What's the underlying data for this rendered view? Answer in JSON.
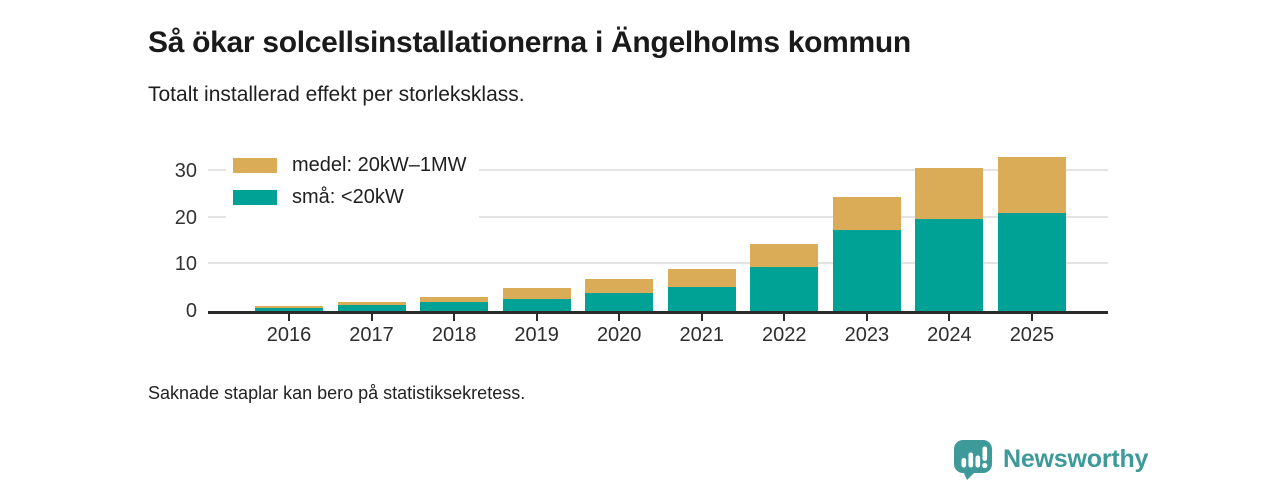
{
  "branding": {
    "name": "Newsworthy",
    "icon": "bar-chart-speech-bubble-icon",
    "color": "#3d9a98"
  },
  "chart_data": {
    "type": "bar",
    "stacked": true,
    "title": "Så ökar solcellsinstallationerna i Ängelholms kommun",
    "subtitle": "Totalt installerad effekt per storleksklass.",
    "footnote": "Saknade staplar kan bero på statistiksekretess.",
    "categories": [
      "2016",
      "2017",
      "2018",
      "2019",
      "2020",
      "2021",
      "2022",
      "2023",
      "2024",
      "2025"
    ],
    "series": [
      {
        "name": "medel: 20kW–1MW",
        "color": "#dbac57",
        "values": [
          0.3,
          0.6,
          1.0,
          2.5,
          3.0,
          3.9,
          5.0,
          7.1,
          11.0,
          12.0
        ]
      },
      {
        "name": "små: <20kW",
        "color": "#00a296",
        "values": [
          0.7,
          1.3,
          1.9,
          2.5,
          3.9,
          5.2,
          9.4,
          17.3,
          19.6,
          21.0
        ]
      }
    ],
    "stack_order_bottom_to_top": [
      "små: <20kW",
      "medel: 20kW–1MW"
    ],
    "xlabel": "",
    "ylabel": "",
    "yticks": [
      0,
      10,
      20,
      30
    ],
    "ylim": [
      0,
      36
    ],
    "grid": "horizontal",
    "legend_position": "top-left",
    "axis_color": "#2b2b2b",
    "grid_color": "#e3e3e3"
  }
}
